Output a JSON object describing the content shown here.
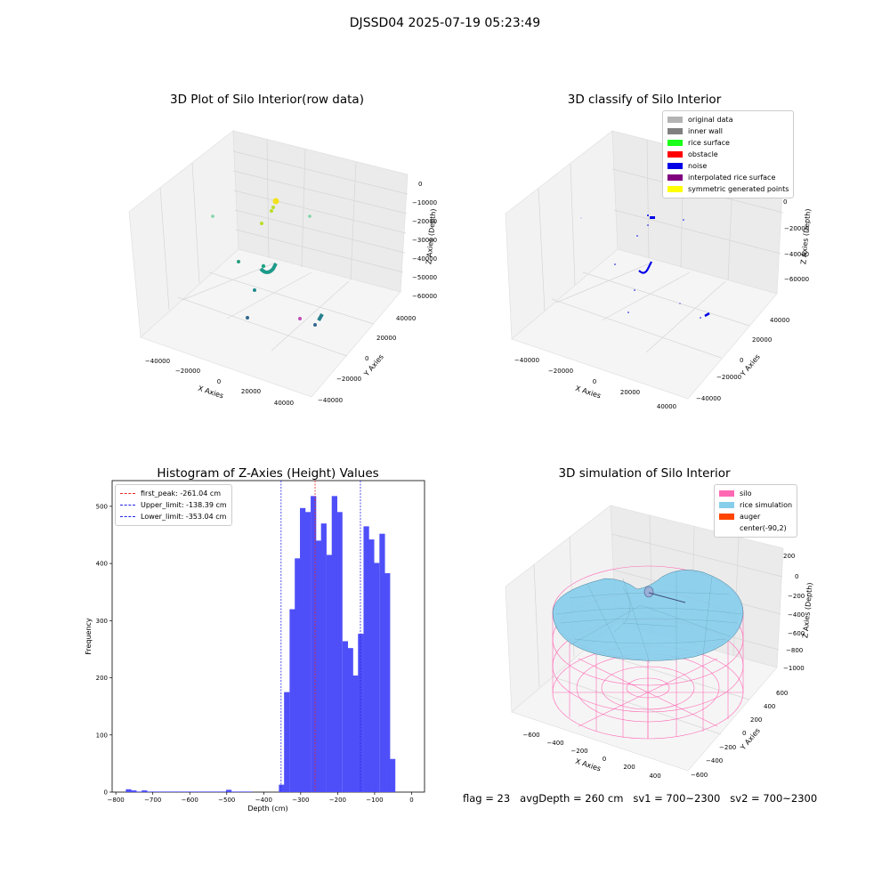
{
  "figure": {
    "suptitle": "DJSSD04 2025-07-19 05:23:49"
  },
  "colors": {
    "pane": "#f2f2f2",
    "grid": "#d9d9d9",
    "hist": "#4f4ff9",
    "peak": "#e8231f",
    "limit": "#2323e8"
  },
  "panel_raw": {
    "title": "3D Plot of Silo Interior(row data)",
    "xlabel": "X Axies",
    "ylabel": "Y Axies",
    "zlabel": "Z Axies (Depth)",
    "xticks": [
      "−40000",
      "−20000",
      "0",
      "20000",
      "40000"
    ],
    "yticks": [
      "40000",
      "20000",
      "0",
      "−20000",
      "−40000"
    ],
    "zticks": [
      "0",
      "−10000",
      "−20000",
      "−30000",
      "−40000",
      "−50000",
      "−60000"
    ]
  },
  "panel_class": {
    "title": "3D classify of Silo Interior",
    "xlabel": "X Axies",
    "ylabel": "Y Axies",
    "zlabel": "Z Axies (Depth)",
    "xticks": [
      "−40000",
      "−20000",
      "0",
      "20000",
      "40000"
    ],
    "yticks": [
      "40000",
      "20000",
      "0",
      "−20000",
      "−40000"
    ],
    "zticks": [
      "0",
      "−20000",
      "−40000",
      "−60000"
    ],
    "legend": [
      {
        "label": "original data",
        "color": "#b3b3b3"
      },
      {
        "label": "inner wall",
        "color": "#808080"
      },
      {
        "label": "rice surface",
        "color": "#1aff1a"
      },
      {
        "label": "obstacle",
        "color": "#ff0000"
      },
      {
        "label": "noise",
        "color": "#0000e6"
      },
      {
        "label": "interpolated rice surface",
        "color": "#800080"
      },
      {
        "label": "symmetric generated points",
        "color": "#ffff00"
      }
    ]
  },
  "panel_sim": {
    "title": "3D simulation of Silo Interior",
    "xlabel": "X Axies",
    "ylabel": "Y Axies",
    "zlabel": "Z Axies (Depth)",
    "xticks": [
      "−600",
      "−400",
      "−200",
      "0",
      "200",
      "400"
    ],
    "yticks": [
      "600",
      "400",
      "200",
      "0",
      "−200",
      "−400",
      "−600"
    ],
    "zticks": [
      "200",
      "0",
      "−200",
      "−400",
      "−600",
      "−800",
      "−1000"
    ],
    "legend": [
      {
        "label": "silo",
        "color": "#ff69b4"
      },
      {
        "label": "rice simulation",
        "color": "#87ceeb"
      },
      {
        "label": "auger",
        "color": "#ff4500"
      },
      {
        "label": "center(-90,2)",
        "color": ""
      }
    ],
    "footer": {
      "flag": "flag = 23",
      "avg": "avgDepth = 260 cm",
      "sv1": "sv1 = 700~2300",
      "sv2": "sv2 = 700~2300"
    }
  },
  "chart_data": [
    {
      "type": "bar",
      "title": "Histogram of Z-Axies (Height) Values",
      "xlabel": "Depth (cm)",
      "ylabel": "Frequency",
      "xlim": [
        -810,
        35
      ],
      "ylim": [
        0,
        545
      ],
      "xticks": [
        -800,
        -700,
        -600,
        -500,
        -400,
        -300,
        -200,
        -100,
        0
      ],
      "xtick_labels": [
        "−800",
        "−700",
        "−600",
        "−500",
        "−400",
        "−300",
        "−200",
        "−100",
        "0"
      ],
      "yticks": [
        0,
        100,
        200,
        300,
        400,
        500
      ],
      "bin_width": 14.3,
      "bins": [
        [
          -773,
          5
        ],
        [
          -759,
          3
        ],
        [
          -745,
          1
        ],
        [
          -730,
          3
        ],
        [
          -716,
          1
        ],
        [
          -702,
          1
        ],
        [
          -687,
          1
        ],
        [
          -673,
          1
        ],
        [
          -659,
          1
        ],
        [
          -645,
          1
        ],
        [
          -630,
          1
        ],
        [
          -616,
          1
        ],
        [
          -602,
          1
        ],
        [
          -587,
          1
        ],
        [
          -573,
          1
        ],
        [
          -559,
          1
        ],
        [
          -545,
          1
        ],
        [
          -530,
          1
        ],
        [
          -516,
          1
        ],
        [
          -502,
          4
        ],
        [
          -488,
          1
        ],
        [
          -473,
          1
        ],
        [
          -459,
          1
        ],
        [
          -445,
          1
        ],
        [
          -359,
          13
        ],
        [
          -345,
          175
        ],
        [
          -330,
          320
        ],
        [
          -316,
          409
        ],
        [
          -302,
          497
        ],
        [
          -288,
          490
        ],
        [
          -273,
          518
        ],
        [
          -259,
          440
        ],
        [
          -245,
          470
        ],
        [
          -230,
          415
        ],
        [
          -216,
          518
        ],
        [
          -202,
          490
        ],
        [
          -187,
          264
        ],
        [
          -173,
          252
        ],
        [
          -159,
          204
        ],
        [
          -145,
          277
        ],
        [
          -130,
          465
        ],
        [
          -116,
          442
        ],
        [
          -102,
          401
        ],
        [
          -87,
          452
        ],
        [
          -73,
          383
        ],
        [
          -59,
          58
        ]
      ],
      "lines": [
        {
          "label": "first_peak: -261.04 cm",
          "x": -261.04,
          "color": "#e8231f"
        },
        {
          "label": "Upper_limit: -138.39 cm",
          "x": -138.39,
          "color": "#2323e8"
        },
        {
          "label": "Lower_limit: -353.04 cm",
          "x": -353.04,
          "color": "#2323e8"
        }
      ]
    }
  ]
}
